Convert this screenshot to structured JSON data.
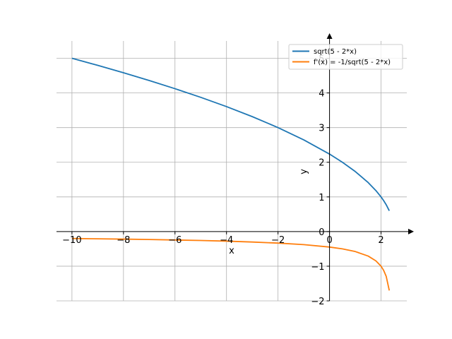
{
  "chart_data": {
    "type": "line",
    "title": "",
    "xlabel": "x",
    "ylabel": "y",
    "xlim": [
      -10.6,
      3.0
    ],
    "ylim": [
      -2.0,
      5.5
    ],
    "grid": true,
    "legend_position": "top-right",
    "x_ticks": [
      -10,
      -8,
      -6,
      -4,
      -2,
      0,
      2
    ],
    "x_tick_labels": [
      "−10",
      "−8",
      "−6",
      "−4",
      "−2",
      "0",
      "2"
    ],
    "y_ticks": [
      -2,
      -1,
      0,
      1,
      2,
      3,
      4,
      5
    ],
    "y_tick_labels": [
      "−2",
      "−1",
      "0",
      "1",
      "2",
      "3",
      "4",
      "5"
    ],
    "series": [
      {
        "name": "sqrt(5 - 2*x)",
        "color": "#1f77b4",
        "x": [
          -10,
          -9,
          -8,
          -7,
          -6,
          -5,
          -4,
          -3,
          -2,
          -1,
          0,
          0.5,
          1,
          1.5,
          1.8,
          2,
          2.1,
          2.2,
          2.32
        ],
        "y": [
          5.0,
          4.796,
          4.583,
          4.359,
          4.123,
          3.873,
          3.606,
          3.317,
          3.0,
          2.646,
          2.236,
          2.0,
          1.732,
          1.414,
          1.183,
          1.0,
          0.894,
          0.775,
          0.6
        ]
      },
      {
        "name": "f'(x) = -1/sqrt(5 - 2*x)",
        "color": "#ff7f0e",
        "x": [
          -10,
          -9,
          -8,
          -7,
          -6,
          -5,
          -4,
          -3,
          -2,
          -1,
          0,
          0.5,
          1,
          1.5,
          1.8,
          2,
          2.1,
          2.2,
          2.32
        ],
        "y": [
          -0.2,
          -0.209,
          -0.218,
          -0.229,
          -0.243,
          -0.258,
          -0.277,
          -0.302,
          -0.333,
          -0.378,
          -0.447,
          -0.5,
          -0.577,
          -0.707,
          -0.845,
          -1.0,
          -1.118,
          -1.291,
          -1.7
        ]
      }
    ]
  }
}
